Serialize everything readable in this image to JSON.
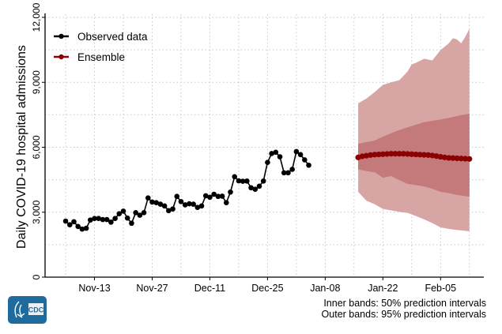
{
  "chart_data": {
    "type": "line",
    "ylabel": "Daily COVID-19 hospital admissions",
    "xlabel": "",
    "x_unit": "days since Nov-13",
    "xlim": [
      -12,
      94.5
    ],
    "ylim": [
      0,
      12000
    ],
    "yticks": [
      0,
      3000,
      6000,
      9000,
      12000
    ],
    "ytick_labels": [
      "0",
      "3,000",
      "6,000",
      "9,000",
      "12,000"
    ],
    "xticks": [
      0,
      14,
      28,
      42,
      56,
      70,
      84
    ],
    "xtick_labels": [
      "Nov-13",
      "Nov-27",
      "Dec-11",
      "Dec-25",
      "Jan-08",
      "Jan-22",
      "Feb-05"
    ],
    "grid": true,
    "legend_position": "top-left",
    "legend": [
      {
        "label": "Observed data",
        "color": "#000000"
      },
      {
        "label": "Ensemble",
        "color": "#8b0000"
      }
    ],
    "observed": {
      "x_start": -7,
      "values": [
        2590,
        2420,
        2560,
        2340,
        2220,
        2260,
        2640,
        2710,
        2710,
        2660,
        2660,
        2540,
        2710,
        2930,
        3050,
        2730,
        2490,
        2980,
        2860,
        2980,
        3660,
        3470,
        3440,
        3370,
        3290,
        3070,
        3150,
        3730,
        3490,
        3340,
        3390,
        3370,
        3220,
        3290,
        3760,
        3690,
        3830,
        3730,
        3740,
        3440,
        3930,
        4640,
        4450,
        4430,
        4440,
        4130,
        4060,
        4200,
        4440,
        5300,
        5710,
        5770,
        5560,
        4820,
        4820,
        4980,
        5800,
        5660,
        5420,
        5170
      ]
    },
    "ensemble": {
      "x_start": 64,
      "median": [
        5530,
        5580,
        5610,
        5640,
        5660,
        5670,
        5680,
        5690,
        5700,
        5700,
        5700,
        5700,
        5690,
        5680,
        5670,
        5660,
        5650,
        5640,
        5620,
        5590,
        5560,
        5530,
        5510,
        5500,
        5490,
        5480,
        5470,
        5460
      ],
      "band_x": [
        64,
        66,
        67,
        68,
        70,
        72,
        74,
        76,
        77,
        78,
        80,
        82,
        84,
        86,
        87,
        88,
        89,
        90,
        91
      ],
      "outer_upper": [
        8030,
        8250,
        8400,
        8550,
        8880,
        9000,
        9100,
        9500,
        9830,
        9900,
        10090,
        10010,
        10490,
        10800,
        11040,
        10980,
        10800,
        11100,
        11470
      ],
      "outer_lower": [
        3940,
        3530,
        3450,
        3370,
        3150,
        3080,
        3020,
        2970,
        2900,
        2820,
        2670,
        2500,
        2300,
        2230,
        2200,
        2180,
        2160,
        2140,
        2120
      ],
      "inner_upper": [
        6160,
        6240,
        6270,
        6310,
        6490,
        6650,
        6800,
        6920,
        6980,
        7040,
        7160,
        7220,
        7280,
        7360,
        7400,
        7440,
        7480,
        7520,
        7550
      ],
      "inner_lower": [
        4980,
        4900,
        4870,
        4850,
        4590,
        4670,
        4480,
        4310,
        4280,
        4250,
        4190,
        4080,
        3940,
        3880,
        3840,
        3800,
        3770,
        3740,
        3720
      ]
    },
    "colors": {
      "observed": "#000000",
      "ensemble": "#8b0000",
      "outer_band": "#d8a5a5",
      "inner_band": "#c47a7a"
    }
  },
  "footer": {
    "inner_note": "Inner bands: 50% prediction intervals",
    "outer_note": "Outer bands: 95% prediction intervals"
  },
  "logo": {
    "text": "CDC"
  }
}
